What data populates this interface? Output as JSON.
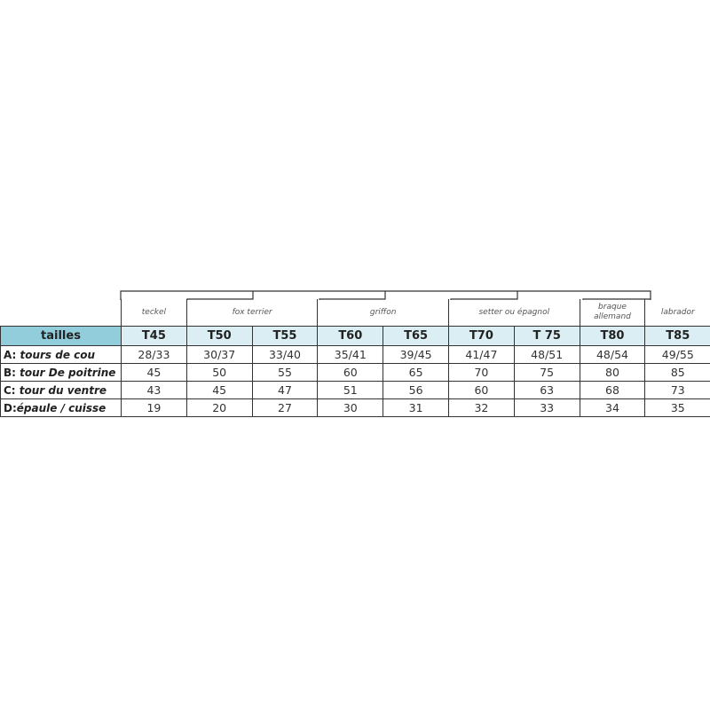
{
  "header_label": "tailles",
  "breeds": [
    {
      "name": "teckel",
      "span": 1
    },
    {
      "name": "fox terrier",
      "span": 2
    },
    {
      "name": "griffon",
      "span": 2
    },
    {
      "name": "setter ou épagnol",
      "span": 2
    },
    {
      "name": "braque allemand",
      "span": 1
    },
    {
      "name": "labrador",
      "span": 1
    }
  ],
  "sizes": [
    "T45",
    "T50",
    "T55",
    "T60",
    "T65",
    "T70",
    "T 75",
    "T80",
    "T85"
  ],
  "rows": [
    {
      "prefix": "A:",
      "label": " tours de cou",
      "values": [
        "28/33",
        "30/37",
        "33/40",
        "35/41",
        "39/45",
        "41/47",
        "48/51",
        "48/54",
        "49/55"
      ]
    },
    {
      "prefix": "B:",
      "label": " tour De poitrine",
      "values": [
        "45",
        "50",
        "55",
        "60",
        "65",
        "70",
        "75",
        "80",
        "85"
      ]
    },
    {
      "prefix": "C:",
      "label": " tour du ventre",
      "values": [
        "43",
        "45",
        "47",
        "51",
        "56",
        "60",
        "63",
        "68",
        "73"
      ]
    },
    {
      "prefix": "D:",
      "label": "épaule / cuisse",
      "values": [
        "19",
        "20",
        "27",
        "30",
        "31",
        "32",
        "33",
        "34",
        "35"
      ]
    }
  ],
  "colors": {
    "label_header": "#92cddc",
    "size_header": "#daeef3",
    "border": "#333333"
  }
}
